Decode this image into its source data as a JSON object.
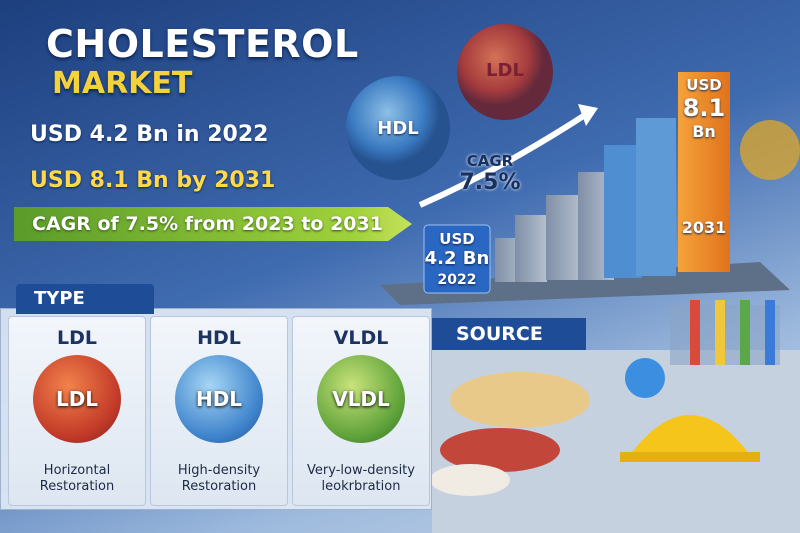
{
  "header": {
    "title": "CHOLESTEROL",
    "subtitle": "MARKET"
  },
  "stats": [
    "USD 4.2 Bn in 2022",
    "USD 8.1 Bn by 2031"
  ],
  "cagr_banner": "CAGR of 7.5% from 2023 to 2031",
  "illustration": {
    "particles": [
      "LDL",
      "HDL"
    ],
    "start": {
      "currency": "USD",
      "amount": "4.2 Bn",
      "year": "2022"
    },
    "cagr": {
      "label": "CAGR",
      "value": "7.5%"
    },
    "end": {
      "currency": "USD",
      "amount": "8.1",
      "unit": "Bn",
      "year": "2031"
    }
  },
  "types": {
    "title": "TYPE",
    "cards": [
      {
        "name": "LDL",
        "particle": "LDL",
        "description": "Horizontal Restoration"
      },
      {
        "name": "HDL",
        "particle": "HDL",
        "description": "High-density Restoration"
      },
      {
        "name": "VLDL",
        "particle": "VLDL",
        "description": "Very-low-density leokrbration"
      }
    ]
  },
  "source": {
    "title": "SOURCE"
  }
}
